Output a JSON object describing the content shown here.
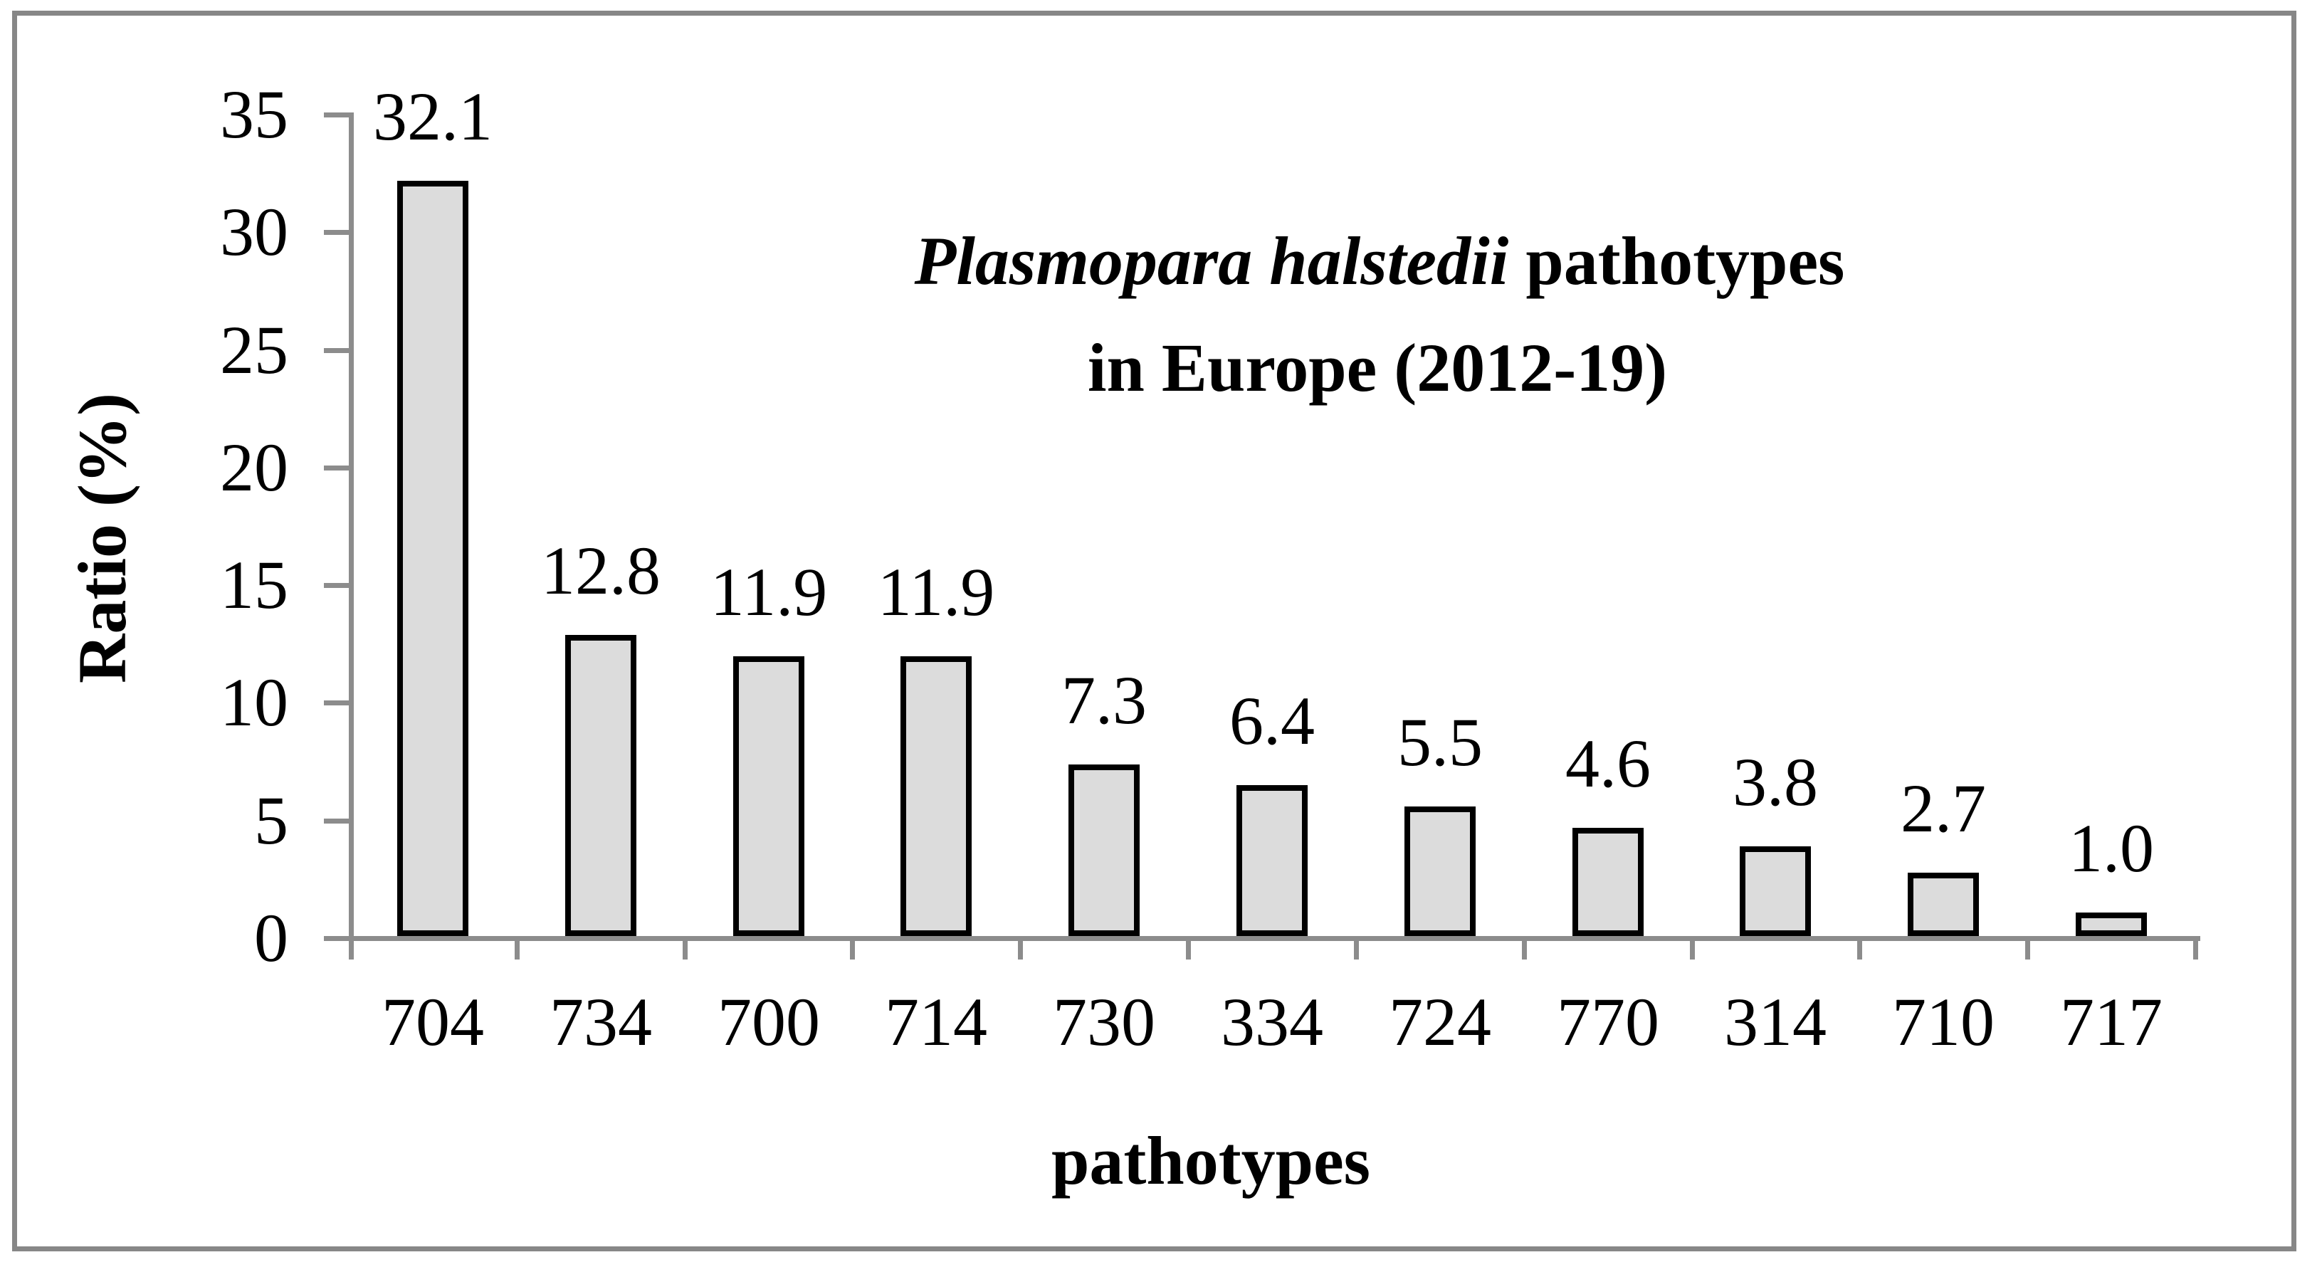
{
  "chart_data": {
    "type": "bar",
    "title": {
      "line1_italic": "Plasmopara halstedii",
      "line1_rest": " pathotypes",
      "line2": "in Europe (2012-19)"
    },
    "xlabel": "pathotypes",
    "ylabel": "Ratio (%)",
    "categories": [
      "704",
      "734",
      "700",
      "714",
      "730",
      "334",
      "724",
      "770",
      "314",
      "710",
      "717"
    ],
    "values": [
      32.1,
      12.8,
      11.9,
      11.9,
      7.3,
      6.4,
      5.5,
      4.6,
      3.8,
      2.7,
      1.0
    ],
    "value_labels": [
      "32.1",
      "12.8",
      "11.9",
      "11.9",
      "7.3",
      "6.4",
      "5.5",
      "4.6",
      "3.8",
      "2.7",
      "1.0"
    ],
    "y_tick_labels": [
      "0",
      "5",
      "10",
      "15",
      "20",
      "25",
      "30",
      "35"
    ],
    "y_tick_step": 5,
    "ylim": [
      0,
      35
    ],
    "grid": "off",
    "legend": "none",
    "colors": {
      "bar_fill": "#dcdcdc",
      "bar_border": "#000000",
      "axis": "#8c8c8c",
      "frame": "#878787",
      "text": "#000000",
      "background": "#ffffff"
    }
  }
}
